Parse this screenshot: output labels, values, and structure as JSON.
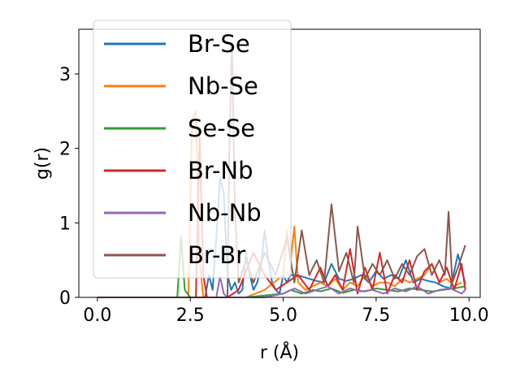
{
  "chart_data": {
    "type": "line",
    "title": "",
    "xlabel": "r (Å)",
    "ylabel": "g(r)",
    "xlim": [
      -0.5,
      10.3
    ],
    "ylim": [
      0,
      3.6
    ],
    "xticks": [
      0.0,
      2.5,
      5.0,
      7.5,
      10.0
    ],
    "xtick_labels": [
      "0.0",
      "2.5",
      "5.0",
      "7.5",
      "10.0"
    ],
    "yticks": [
      0,
      1,
      2,
      3
    ],
    "ytick_labels": [
      "0",
      "1",
      "2",
      "3"
    ],
    "grid": false,
    "legend": {
      "location": "upper-left",
      "alpha": 0.8
    },
    "series": [
      {
        "name": "Br-Se",
        "color": "#1f77b4",
        "x": [
          0,
          2.9,
          3.0,
          3.1,
          3.2,
          3.3,
          3.4,
          3.5,
          3.6,
          3.7,
          3.8,
          3.9,
          4.0,
          4.1,
          4.2,
          4.3,
          4.4,
          4.5,
          4.6,
          4.7,
          4.8,
          4.9,
          5.0,
          5.1,
          5.2,
          5.3,
          5.5,
          5.7,
          5.9,
          6.1,
          6.3,
          6.5,
          6.7,
          6.9,
          7.1,
          7.3,
          7.5,
          7.7,
          7.9,
          8.1,
          8.3,
          8.5,
          8.7,
          8.9,
          9.1,
          9.3,
          9.5,
          9.7,
          9.9
        ],
        "y": [
          0,
          0,
          0.3,
          0.1,
          0.8,
          1.6,
          1.4,
          0.3,
          0.1,
          0.2,
          0.05,
          0.1,
          0.6,
          0.3,
          0.1,
          0.2,
          0.4,
          0.9,
          0.5,
          0.2,
          0.1,
          0.05,
          0.3,
          0.2,
          0.3,
          0.3,
          0.28,
          0.25,
          0.22,
          0.2,
          0.45,
          0.25,
          0.22,
          0.25,
          0.3,
          0.2,
          0.35,
          0.25,
          0.3,
          0.25,
          0.5,
          0.2,
          0.25,
          0.22,
          0.2,
          0.15,
          0.12,
          0.58,
          0.18
        ]
      },
      {
        "name": "Nb-Se",
        "color": "#ff7f0e",
        "x": [
          0,
          2.45,
          2.55,
          2.65,
          2.75,
          2.85,
          3.5,
          4.0,
          4.5,
          5.0,
          5.1,
          5.2,
          5.3,
          5.4,
          5.6,
          5.8,
          6.0,
          6.2,
          6.4,
          6.6,
          6.8,
          7.0,
          7.2,
          7.4,
          7.6,
          7.8,
          8.0,
          8.2,
          8.4,
          8.6,
          8.8,
          9.0,
          9.2,
          9.4,
          9.6,
          9.8
        ],
        "y": [
          0,
          0,
          2.4,
          2.5,
          0.5,
          0,
          0,
          0,
          0.1,
          0.3,
          0.9,
          0.5,
          0.95,
          0.2,
          0.1,
          0.15,
          0.2,
          0.15,
          0.25,
          0.1,
          0.2,
          0.15,
          0.3,
          0.15,
          0.2,
          0.2,
          0.15,
          0.25,
          0.2,
          0.25,
          0.3,
          0.45,
          0.2,
          0.25,
          0.15,
          0.2
        ]
      },
      {
        "name": "Se-Se",
        "color": "#2ca02c",
        "x": [
          0,
          2.15,
          2.25,
          2.35,
          2.5,
          3.0,
          4.0,
          5.0,
          5.2,
          5.5,
          5.8,
          6.0,
          6.3,
          6.6,
          6.9,
          7.2,
          7.5,
          7.8,
          8.1,
          8.4,
          8.7,
          9.0,
          9.3,
          9.6,
          9.9
        ],
        "y": [
          0,
          0,
          0.82,
          0.1,
          0,
          0,
          0,
          0.05,
          0.1,
          0.05,
          0.1,
          0.08,
          0.12,
          0.06,
          0.1,
          0.08,
          0.12,
          0.1,
          0.08,
          0.12,
          0.1,
          0.08,
          0.1,
          0.12,
          0.15
        ]
      },
      {
        "name": "Br-Nb",
        "color": "#d62728",
        "x": [
          0,
          2.65,
          2.75,
          2.85,
          2.95,
          3.1,
          3.5,
          3.8,
          4.2,
          4.5,
          4.8,
          5.1,
          5.4,
          5.7,
          6.0,
          6.2,
          6.4,
          6.6,
          6.8,
          7.0,
          7.2,
          7.4,
          7.6,
          7.8,
          8.0,
          8.2,
          8.4,
          8.6,
          8.8,
          9.0,
          9.2,
          9.4,
          9.6,
          9.8,
          9.9
        ],
        "y": [
          0,
          0,
          2.15,
          0.3,
          0,
          0,
          0,
          0.1,
          0.6,
          0.3,
          0.1,
          0.2,
          0.3,
          0.1,
          0.4,
          0.15,
          0.3,
          0.1,
          0.65,
          0.05,
          0.4,
          0.1,
          0.6,
          0.05,
          0.3,
          0.2,
          0.5,
          0.1,
          0.35,
          0.45,
          0.2,
          0.4,
          0.1,
          0.45,
          0.1
        ]
      },
      {
        "name": "Nb-Nb",
        "color": "#9467bd",
        "x": [
          0,
          3.2,
          3.3,
          3.4,
          3.5,
          4.5,
          5.0,
          5.3,
          5.6,
          5.9,
          6.2,
          6.5,
          6.8,
          7.1,
          7.4,
          7.7,
          8.0,
          8.3,
          8.6,
          8.9,
          9.2,
          9.5,
          9.8,
          9.9
        ],
        "y": [
          0,
          0,
          0.28,
          0.05,
          0,
          0,
          0.05,
          0.12,
          0.05,
          0.1,
          0.15,
          0.05,
          0.12,
          0.08,
          0.1,
          0.05,
          0.12,
          0.08,
          0.15,
          0.05,
          0.1,
          0.12,
          0.05,
          0.1
        ]
      },
      {
        "name": "Br-Br",
        "color": "#8c564b",
        "x": [
          0,
          3.5,
          3.55,
          3.62,
          3.7,
          3.8,
          4.0,
          4.2,
          4.5,
          4.8,
          5.1,
          5.3,
          5.5,
          5.7,
          5.9,
          6.1,
          6.3,
          6.5,
          6.7,
          6.9,
          7.0,
          7.2,
          7.4,
          7.6,
          7.8,
          8.0,
          8.2,
          8.4,
          8.6,
          8.8,
          9.0,
          9.2,
          9.35,
          9.45,
          9.55,
          9.7,
          9.9
        ],
        "y": [
          0,
          0,
          2.0,
          3.4,
          1.2,
          0.2,
          0.5,
          0.2,
          0.6,
          0.3,
          0.8,
          0.2,
          0.9,
          0.3,
          0.5,
          0.2,
          1.25,
          0.35,
          0.6,
          0.2,
          0.95,
          0.25,
          0.45,
          0.3,
          0.5,
          0.25,
          0.45,
          0.3,
          0.55,
          0.65,
          0.3,
          0.5,
          0.3,
          1.15,
          0.2,
          0.4,
          0.7
        ]
      }
    ]
  }
}
